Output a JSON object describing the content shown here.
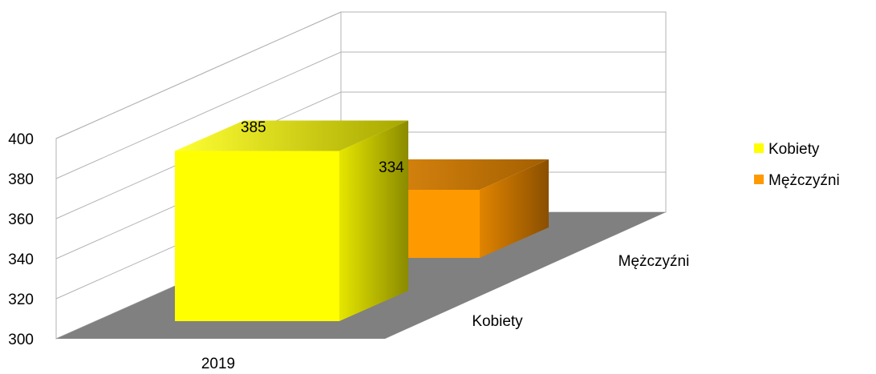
{
  "chart_data": {
    "type": "bar",
    "style": "3d-depth",
    "categories": [
      "2019"
    ],
    "series": [
      {
        "name": "Kobiety",
        "values": [
          385
        ],
        "color": "#ffff00"
      },
      {
        "name": "Mężczyźni",
        "values": [
          334
        ],
        "color": "#ff9900"
      }
    ],
    "depth_labels": [
      "Kobiety",
      "Mężczyźni"
    ],
    "data_labels": [
      "385",
      "334"
    ],
    "ylim": [
      300,
      400
    ],
    "y_ticks": [
      "300",
      "320",
      "340",
      "360",
      "380",
      "400"
    ],
    "gridlines": true,
    "legend_position": "right",
    "floor_color": "#808080"
  }
}
